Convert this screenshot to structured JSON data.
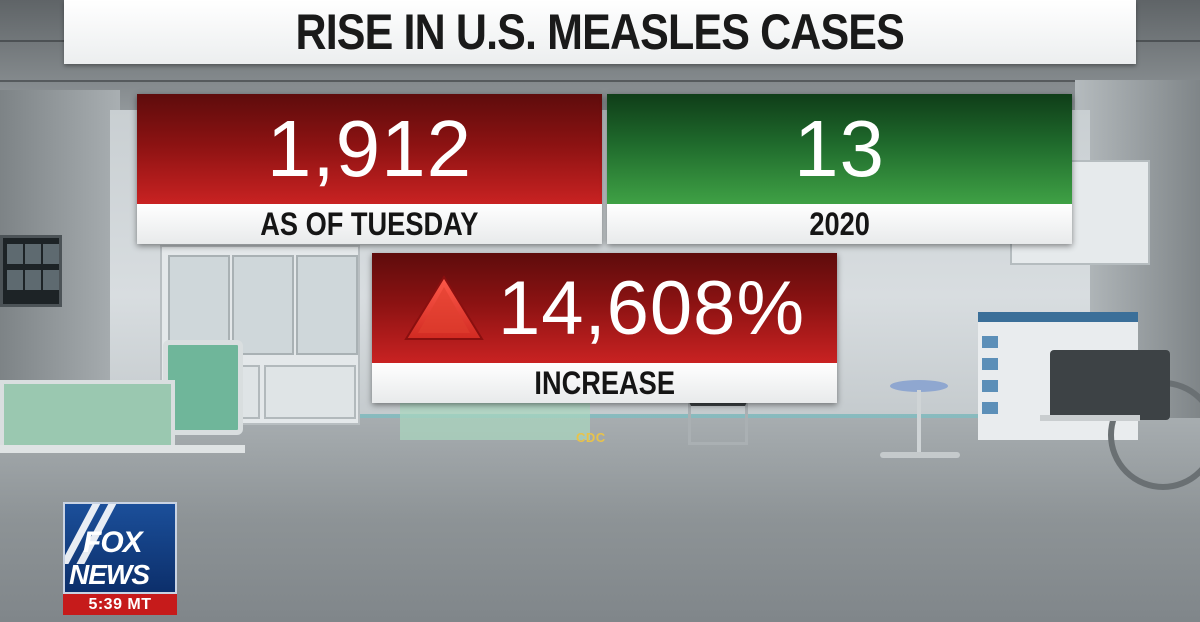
{
  "title": "RISE IN U.S. MEASLES CASES",
  "stats": {
    "current": {
      "value": "1,912",
      "label": "AS OF TUESDAY",
      "color": "#a01818"
    },
    "previous": {
      "value": "13",
      "label": "2020",
      "color": "#2a7a34"
    },
    "change": {
      "value": "14,608%",
      "label": "INCREASE",
      "color": "#a01818",
      "icon": "up-triangle-icon"
    }
  },
  "source": "CDC",
  "network_bug": {
    "line1": "FOX",
    "line2": "NEWS",
    "time": "5:39 MT",
    "colors": {
      "logo_blue": "#0c2f6b",
      "time_red": "#c61b1b"
    }
  }
}
